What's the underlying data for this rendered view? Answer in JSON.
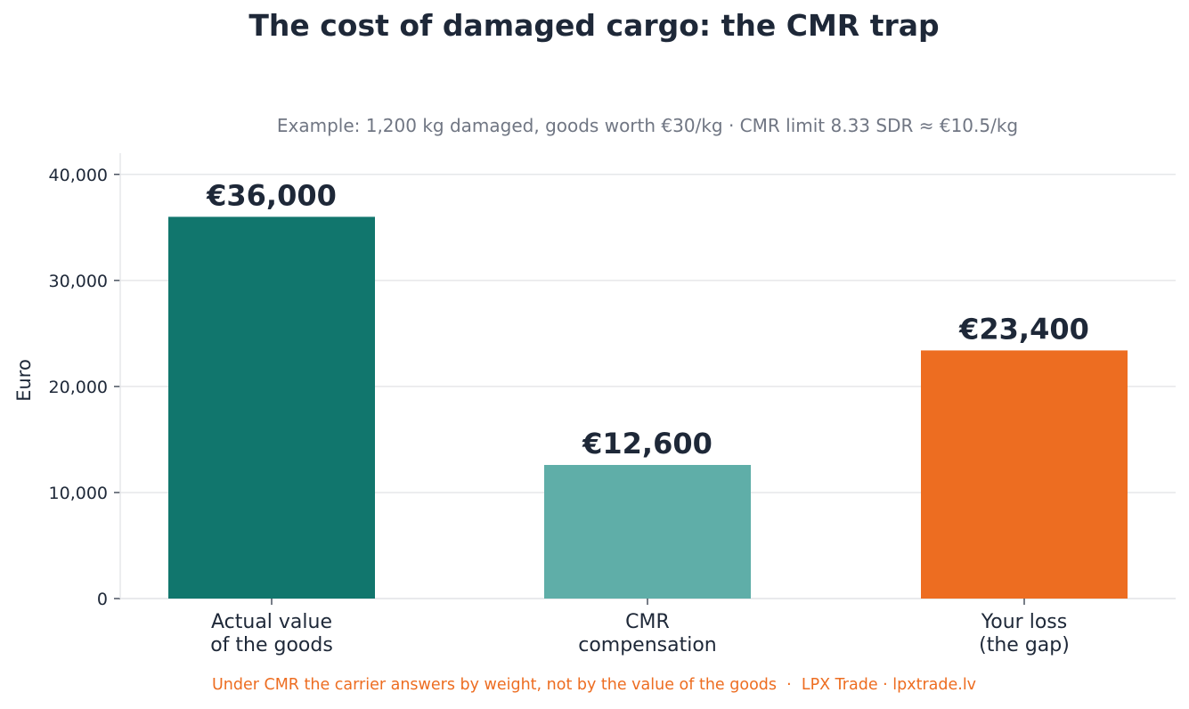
{
  "chart_data": {
    "type": "bar",
    "title": "The cost of damaged cargo: the CMR trap",
    "subtitle": "Example: 1,200 kg damaged, goods worth €30/kg · CMR limit 8.33 SDR ≈ €10.5/kg",
    "xlabel": "",
    "ylabel": "Euro",
    "ylim": [
      0,
      42000
    ],
    "yticks": [
      0,
      10000,
      20000,
      30000,
      40000
    ],
    "ytick_labels": [
      "0",
      "10,000",
      "20,000",
      "30,000",
      "40,000"
    ],
    "grid": true,
    "categories": [
      [
        "Actual value",
        "of the goods"
      ],
      [
        "CMR",
        "compensation"
      ],
      [
        "Your loss",
        "(the gap)"
      ]
    ],
    "values": [
      36000,
      12600,
      23400
    ],
    "data_labels": [
      "€36,000",
      "€12,600",
      "€23,400"
    ],
    "colors": [
      "#11766d",
      "#5faea8",
      "#ed6d21"
    ],
    "footer": "Under CMR the carrier answers by weight, not by the value of the goods  ·  LPX Trade · lpxtrade.lv",
    "text_color": "#1e2838",
    "footer_color": "#ed6d21",
    "subtitle_color": "#707683",
    "grid_color": "#e6e7ea"
  }
}
